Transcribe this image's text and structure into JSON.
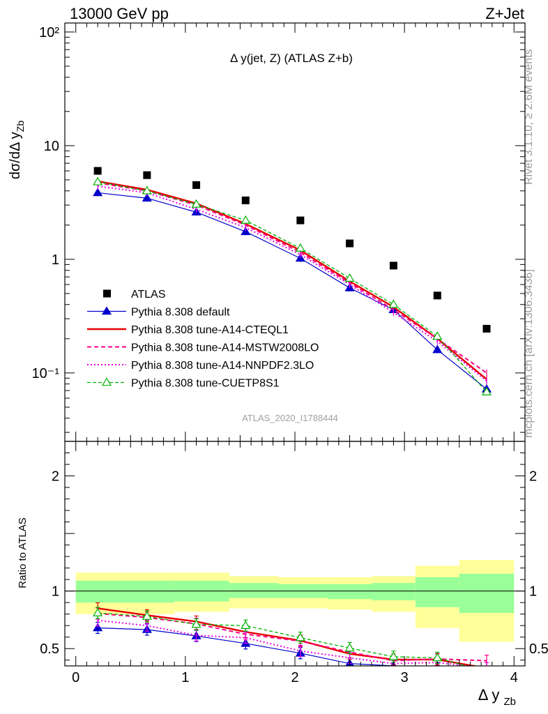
{
  "header": {
    "left": "13000 GeV pp",
    "right": "Z+Jet"
  },
  "side_text": {
    "rivet": "Rivet 3.1.10, ≥ 2.6M events",
    "mcplots": "mcplots.cern.ch [arXiv:1306.3436]"
  },
  "chart_data": [
    {
      "type": "scatter",
      "title": "Δ y(jet, Z) (ATLAS Z+b)",
      "watermark": "ATLAS_2020_I1788444",
      "ylabel": "dσ/dΔ y_Zb",
      "yscale": "log",
      "ylim": [
        0.025,
        120
      ],
      "xlim": [
        -0.1,
        4.1
      ],
      "y_ticks": [
        {
          "value": 0.1,
          "label": "10⁻¹"
        },
        {
          "value": 1,
          "label": "1"
        },
        {
          "value": 10,
          "label": "10"
        },
        {
          "value": 100,
          "label": "10²"
        }
      ],
      "x": [
        0.2,
        0.65,
        1.1,
        1.55,
        2.05,
        2.5,
        2.9,
        3.3,
        3.75
      ],
      "legend_position": "bottom-left",
      "series": [
        {
          "name": "ATLAS",
          "color": "#000000",
          "values": [
            6.0,
            5.5,
            4.5,
            3.3,
            2.2,
            1.38,
            0.88,
            0.48,
            0.245
          ]
        },
        {
          "name": "Pythia 8.308 default",
          "color": "#0000cc",
          "values": [
            3.85,
            3.45,
            2.6,
            1.75,
            1.02,
            0.56,
            0.36,
            0.16,
            0.072
          ]
        },
        {
          "name": "Pythia 8.308 tune-A14-CTEQL1",
          "color": "#e60000",
          "values": [
            4.85,
            4.1,
            3.1,
            2.05,
            1.2,
            0.64,
            0.38,
            0.2,
            0.088
          ]
        },
        {
          "name": "Pythia 8.308 tune-A14-MSTW2008LO",
          "color": "#ff0080",
          "values": [
            4.7,
            4.0,
            3.0,
            2.0,
            1.15,
            0.62,
            0.36,
            0.2,
            0.1
          ]
        },
        {
          "name": "Pythia 8.308 tune-A14-NNPDF2.3LO",
          "color": "#e600e6",
          "values": [
            4.4,
            3.85,
            2.75,
            1.9,
            1.1,
            0.6,
            0.34,
            0.19,
            0.085
          ]
        },
        {
          "name": "Pythia 8.308 tune-CUETP8S1",
          "color": "#00b300",
          "values": [
            4.8,
            4.0,
            3.05,
            2.2,
            1.25,
            0.68,
            0.4,
            0.21,
            0.068
          ]
        }
      ]
    },
    {
      "type": "line",
      "ylabel": "Ratio to ATLAS",
      "xlabel": "Δ y_Zb",
      "ylim": [
        0.35,
        2.3
      ],
      "xlim": [
        -0.1,
        4.1
      ],
      "x_ticks": [
        0,
        1,
        2,
        3,
        4
      ],
      "y_ticks": [
        0.5,
        1,
        2
      ],
      "bin_edges": [
        0,
        0.9,
        1.4,
        1.85,
        2.3,
        2.7,
        3.1,
        3.5,
        4.0
      ],
      "band_yellow": {
        "low": [
          0.8,
          0.82,
          0.85,
          0.85,
          0.84,
          0.82,
          0.68,
          0.56,
          0.36
        ],
        "high": [
          1.16,
          1.16,
          1.13,
          1.12,
          1.12,
          1.13,
          1.22,
          1.27,
          1.34
        ]
      },
      "band_green": {
        "low": [
          0.9,
          0.91,
          0.94,
          0.94,
          0.93,
          0.92,
          0.86,
          0.81,
          0.74
        ],
        "high": [
          1.09,
          1.09,
          1.07,
          1.06,
          1.06,
          1.07,
          1.12,
          1.15,
          1.19
        ]
      },
      "x": [
        0.2,
        0.65,
        1.1,
        1.55,
        2.05,
        2.5,
        2.9,
        3.3,
        3.75
      ],
      "series": [
        {
          "name": "Pythia 8.308 default",
          "color": "#0000cc",
          "values": [
            0.68,
            0.665,
            0.61,
            0.545,
            0.46,
            0.37,
            0.35,
            0.33,
            0.3
          ]
        },
        {
          "name": "Pythia 8.308 tune-A14-CTEQL1",
          "color": "#e60000",
          "values": [
            0.85,
            0.79,
            0.735,
            0.645,
            0.57,
            0.455,
            0.405,
            0.405,
            0.33
          ]
        },
        {
          "name": "Pythia 8.308 tune-A14-MSTW2008LO",
          "color": "#ff0080",
          "values": [
            0.805,
            0.77,
            0.715,
            0.625,
            0.565,
            0.47,
            0.395,
            0.41,
            0.395
          ]
        },
        {
          "name": "Pythia 8.308 tune-A14-NNPDF2.3LO",
          "color": "#e600e6",
          "values": [
            0.745,
            0.7,
            0.615,
            0.595,
            0.48,
            0.42,
            0.37,
            0.38,
            0.33
          ]
        },
        {
          "name": "Pythia 8.308 tune-CUETP8S1",
          "color": "#00b300",
          "values": [
            0.81,
            0.78,
            0.71,
            0.7,
            0.595,
            0.505,
            0.43,
            0.42,
            0.3
          ]
        }
      ]
    }
  ]
}
